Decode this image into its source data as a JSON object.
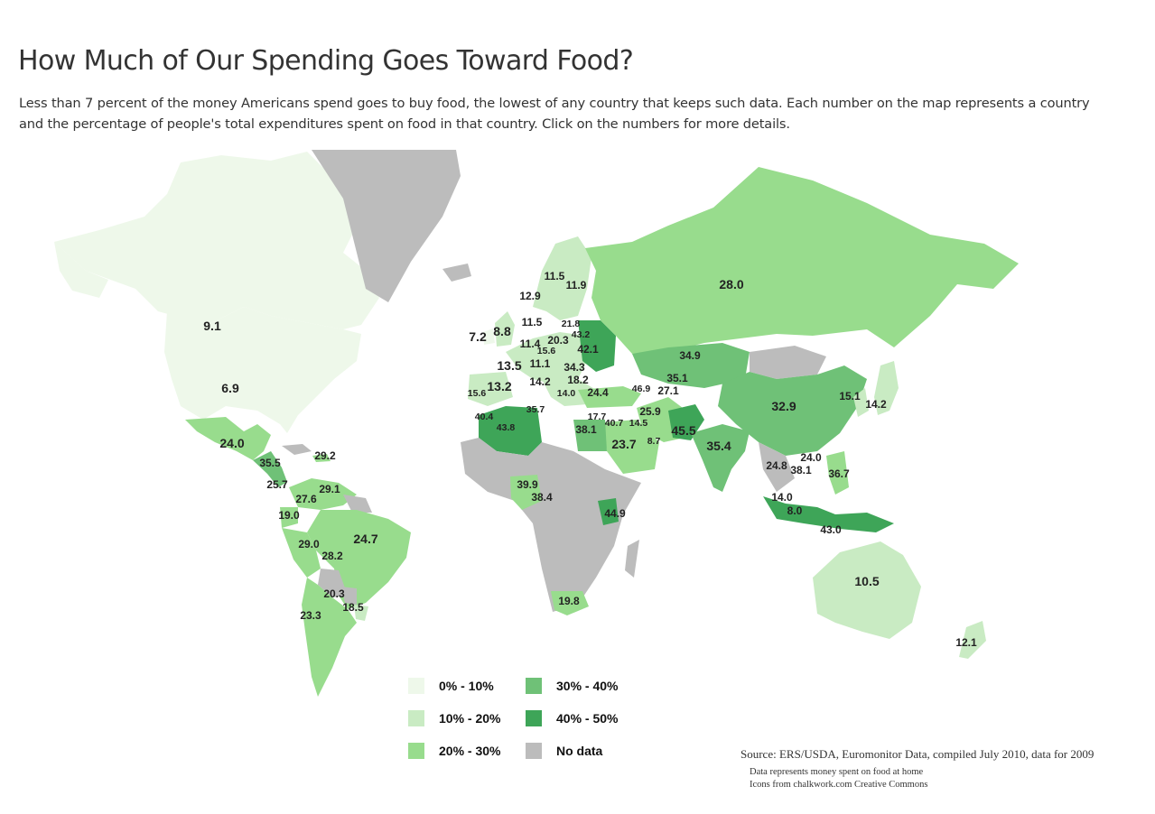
{
  "title": "How Much of Our Spending Goes Toward Food?",
  "subtitle": "Less than 7 percent of the money Americans spend goes to buy food, the lowest of any country that keeps such data. Each number on the map represents a country and the percentage of people's total expenditures spent on food in that country. Click on the numbers for more details.",
  "colors": {
    "bin_0_10": "#eef8ea",
    "bin_10_20": "#c9ebc3",
    "bin_20_30": "#98dc8d",
    "bin_30_40": "#6fc177",
    "bin_40_50": "#3ea558",
    "no_data": "#bcbcbc"
  },
  "legend": [
    {
      "label": "0% - 10%",
      "color_key": "bin_0_10"
    },
    {
      "label": "10% - 20%",
      "color_key": "bin_10_20"
    },
    {
      "label": "20% - 30%",
      "color_key": "bin_20_30"
    },
    {
      "label": "30% - 40%",
      "color_key": "bin_30_40"
    },
    {
      "label": "40% - 50%",
      "color_key": "bin_40_50"
    },
    {
      "label": "No data",
      "color_key": "no_data"
    }
  ],
  "map_values": [
    "9.1",
    "6.9",
    "24.0",
    "35.5",
    "29.2",
    "25.7",
    "27.6",
    "29.1",
    "19.0",
    "29.0",
    "28.2",
    "24.7",
    "20.3",
    "18.5",
    "23.3",
    "11.5",
    "11.9",
    "12.9",
    "11.5",
    "7.2",
    "8.8",
    "11.4",
    "15.6",
    "20.3",
    "21.8",
    "43.2",
    "42.1",
    "13.5",
    "11.1",
    "34.3",
    "18.2",
    "14.2",
    "14.0",
    "24.4",
    "15.6",
    "13.2",
    "35.7",
    "40.4",
    "43.8",
    "46.9",
    "35.1",
    "27.1",
    "34.9",
    "25.9",
    "17.7",
    "40.7",
    "14.5",
    "38.1",
    "23.7",
    "8.7",
    "45.5",
    "35.4",
    "32.9",
    "15.1",
    "14.2",
    "24.0",
    "24.8",
    "38.1",
    "36.7",
    "14.0",
    "8.0",
    "43.0",
    "28.0",
    "39.9",
    "38.4",
    "44.9",
    "19.8",
    "10.5",
    "12.1"
  ],
  "source": "Source: ERS/USDA, Euromonitor Data, compiled July 2010, data for 2009",
  "notes": [
    "Data represents money spent on food at home",
    "Icons from chalkwork.com Creative Commons"
  ]
}
